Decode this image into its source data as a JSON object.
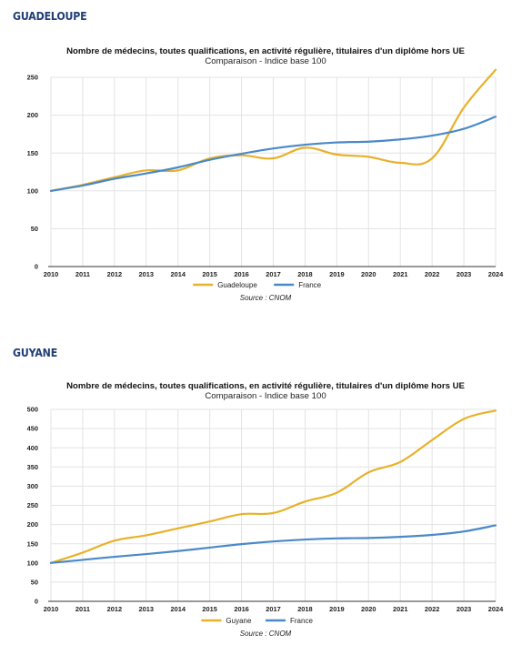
{
  "sections": [
    {
      "heading": "GUADELOUPE",
      "chart_data": {
        "type": "line",
        "title": "Nombre de médecins, toutes qualifications, en activité régulière, titulaires d'un diplôme hors UE",
        "subtitle": "Comparaison - Indice base 100",
        "source": "Source : CNOM",
        "x": [
          "2010",
          "2011",
          "2012",
          "2013",
          "2014",
          "2015",
          "2016",
          "2017",
          "2018",
          "2019",
          "2020",
          "2021",
          "2022",
          "2023",
          "2024"
        ],
        "ylim": [
          0,
          250
        ],
        "yticks": [
          0,
          50,
          100,
          150,
          200,
          250
        ],
        "grid": true,
        "legend_position": "bottom",
        "series": [
          {
            "name": "Guadeloupe",
            "color": "#e8b12a",
            "values": [
              100,
              108,
              118,
              127,
              127,
              143,
              147,
              143,
              157,
              148,
              145,
              137,
              143,
              210,
              260
            ]
          },
          {
            "name": "France",
            "color": "#4a89c8",
            "values": [
              100,
              107,
              116,
              123,
              131,
              141,
              149,
              156,
              161,
              164,
              165,
              168,
              173,
              182,
              198
            ]
          }
        ]
      }
    },
    {
      "heading": "GUYANE",
      "chart_data": {
        "type": "line",
        "title": "Nombre de médecins, toutes qualifications, en activité régulière, titulaires d'un diplôme hors UE",
        "subtitle": "Comparaison - Indice base 100",
        "source": "Source : CNOM",
        "x": [
          "2010",
          "2011",
          "2012",
          "2013",
          "2014",
          "2015",
          "2016",
          "2017",
          "2018",
          "2019",
          "2020",
          "2021",
          "2022",
          "2023",
          "2024"
        ],
        "ylim": [
          0,
          500
        ],
        "yticks": [
          0,
          50,
          100,
          150,
          200,
          250,
          300,
          350,
          400,
          450,
          500
        ],
        "grid": true,
        "legend_position": "bottom",
        "series": [
          {
            "name": "Guyane",
            "color": "#e8b12a",
            "values": [
              100,
              127,
              158,
              172,
              190,
              208,
              227,
              230,
              260,
              283,
              336,
              363,
              420,
              475,
              497
            ]
          },
          {
            "name": "France",
            "color": "#4a89c8",
            "values": [
              100,
              108,
              116,
              123,
              131,
              140,
              149,
              156,
              161,
              164,
              165,
              168,
              173,
              182,
              198
            ]
          }
        ]
      }
    }
  ]
}
